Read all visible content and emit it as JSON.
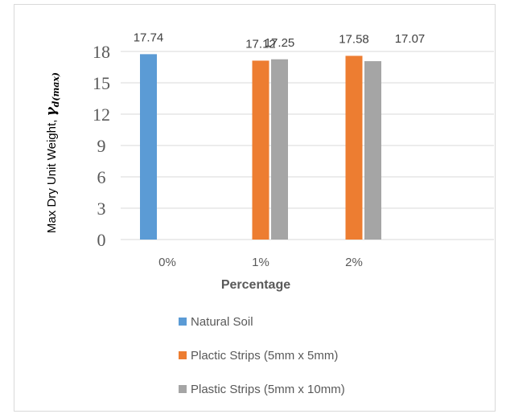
{
  "chart_data": {
    "type": "bar",
    "categories": [
      "0%",
      "1%",
      "2%"
    ],
    "series": [
      {
        "name": "Natural Soil",
        "values": [
          17.74,
          null,
          null
        ],
        "color": "#5b9bd5"
      },
      {
        "name": "Plactic Strips (5mm x 5mm)",
        "values": [
          null,
          17.12,
          17.58
        ],
        "color": "#ed7d31"
      },
      {
        "name": "Plastic Strips (5mm x 10mm)",
        "values": [
          null,
          17.25,
          17.07
        ],
        "color": "#a5a5a5"
      }
    ],
    "data_labels": [
      "17.74",
      "17.12",
      "17.25",
      "17.58",
      "17.07"
    ],
    "xlabel": "Percentage",
    "ylabel": {
      "text": "Max Dry Unit Weight, ",
      "symbol": "γ",
      "subscript": "d(max)"
    },
    "ylim": [
      0,
      18
    ],
    "yticks": [
      0,
      3,
      6,
      9,
      12,
      15,
      18
    ],
    "grid": true,
    "legend_position": "bottom"
  }
}
